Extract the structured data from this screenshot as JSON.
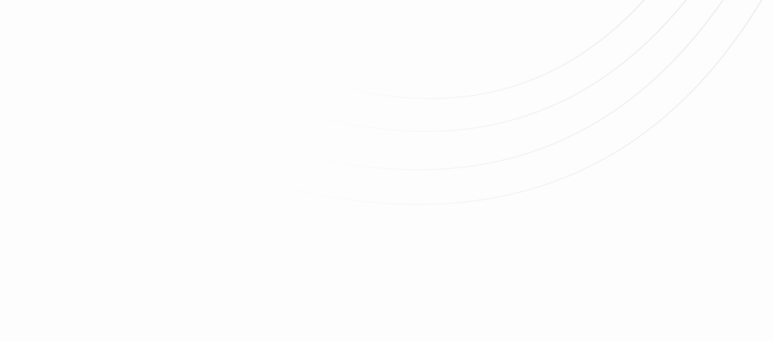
{
  "background": {
    "color": "#fdfdfd",
    "decoration": "concentric-arcs-icon",
    "arc_color": "#e6e6e6",
    "arc_count": 4
  }
}
